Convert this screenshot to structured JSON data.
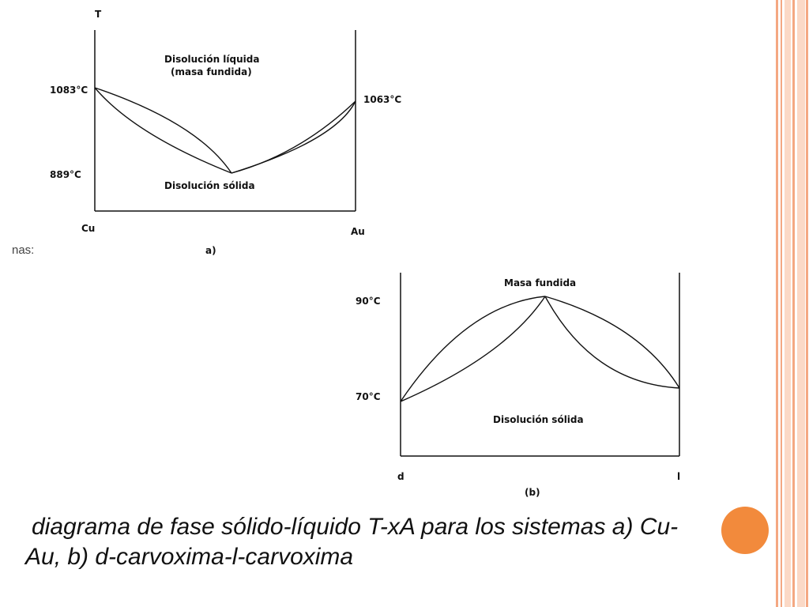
{
  "frame": {
    "accent": "#f4a882",
    "accent_light": "#fbd9c6"
  },
  "side_label": "nas:",
  "figure_a": {
    "axis_title": "T",
    "region_liquid_line1": "Disolución líquida",
    "region_liquid_line2": "(masa fundida)",
    "region_solid": "Disolución sólida",
    "temp_left": "1083°C",
    "temp_right": "1063°C",
    "temp_min": "889°C",
    "comp_left": "Cu",
    "comp_right": "Au",
    "panel_label": "a)"
  },
  "figure_b": {
    "region_liquid": "Masa fundida",
    "region_solid": "Disolución sólida",
    "temp_max": "90°C",
    "temp_ends": "70°C",
    "comp_left": "d",
    "comp_right": "l",
    "panel_label": "(b)"
  },
  "caption": {
    "line1": "diagrama de fase sólido-líquido T-xA para los sistemas a) Cu-",
    "line2": "Au, b) d-carvoxima-l-carvoxima",
    "bullet_color": "#f28a3c"
  }
}
